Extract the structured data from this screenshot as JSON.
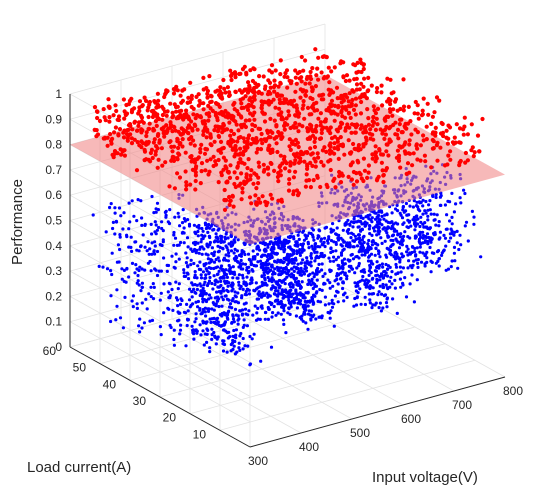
{
  "chart_data": {
    "type": "scatter",
    "projection": "3d",
    "title": "",
    "xlabel": "Input voltage(V)",
    "ylabel": "Load current(A)",
    "zlabel": "Performance",
    "xlim": [
      300,
      800
    ],
    "ylim": [
      0,
      60
    ],
    "zlim": [
      0,
      1
    ],
    "xticks": [
      "300",
      "400",
      "500",
      "600",
      "700",
      "800"
    ],
    "yticks": [
      "10",
      "20",
      "30",
      "40",
      "50",
      "60"
    ],
    "zticks": [
      "0",
      "0.1",
      "0.2",
      "0.3",
      "0.4",
      "0.5",
      "0.6",
      "0.7",
      "0.8",
      "0.9",
      "1"
    ],
    "grid": true,
    "threshold_plane": {
      "z": 0.8,
      "color": "#f08080",
      "opacity": 0.55
    },
    "series": [
      {
        "color": "#0000ff",
        "rule": "performance below 0.8",
        "clusters": [
          {
            "x": [
              420,
              560
            ],
            "y": [
              28,
              58
            ],
            "z": [
              0.0,
              0.5
            ],
            "n": 650
          },
          {
            "x": [
              480,
              620
            ],
            "y": [
              15,
              45
            ],
            "z": [
              0.2,
              0.55
            ],
            "n": 750
          },
          {
            "x": [
              560,
              700
            ],
            "y": [
              5,
              30
            ],
            "z": [
              0.3,
              0.7
            ],
            "n": 550
          },
          {
            "x": [
              600,
              790
            ],
            "y": [
              0,
              20
            ],
            "z": [
              0.45,
              0.78
            ],
            "n": 350
          },
          {
            "x": [
              320,
              480
            ],
            "y": [
              45,
              60
            ],
            "z": [
              0.1,
              0.6
            ],
            "n": 180
          }
        ]
      },
      {
        "color": "#ff0000",
        "rule": "performance at or above 0.8",
        "bands": [
          {
            "x0": 330,
            "y0": 58,
            "x1": 780,
            "y1": 55,
            "z": [
              0.78,
              0.95
            ],
            "n": 260
          },
          {
            "x0": 300,
            "y0": 48,
            "x1": 780,
            "y1": 42,
            "z": [
              0.82,
              1.0
            ],
            "n": 300
          },
          {
            "x0": 300,
            "y0": 38,
            "x1": 780,
            "y1": 30,
            "z": [
              0.82,
              1.0
            ],
            "n": 300
          },
          {
            "x0": 300,
            "y0": 27,
            "x1": 780,
            "y1": 18,
            "z": [
              0.82,
              1.0
            ],
            "n": 300
          },
          {
            "x0": 320,
            "y0": 14,
            "x1": 790,
            "y1": 6,
            "z": [
              0.82,
              1.0
            ],
            "n": 260
          }
        ]
      }
    ]
  }
}
